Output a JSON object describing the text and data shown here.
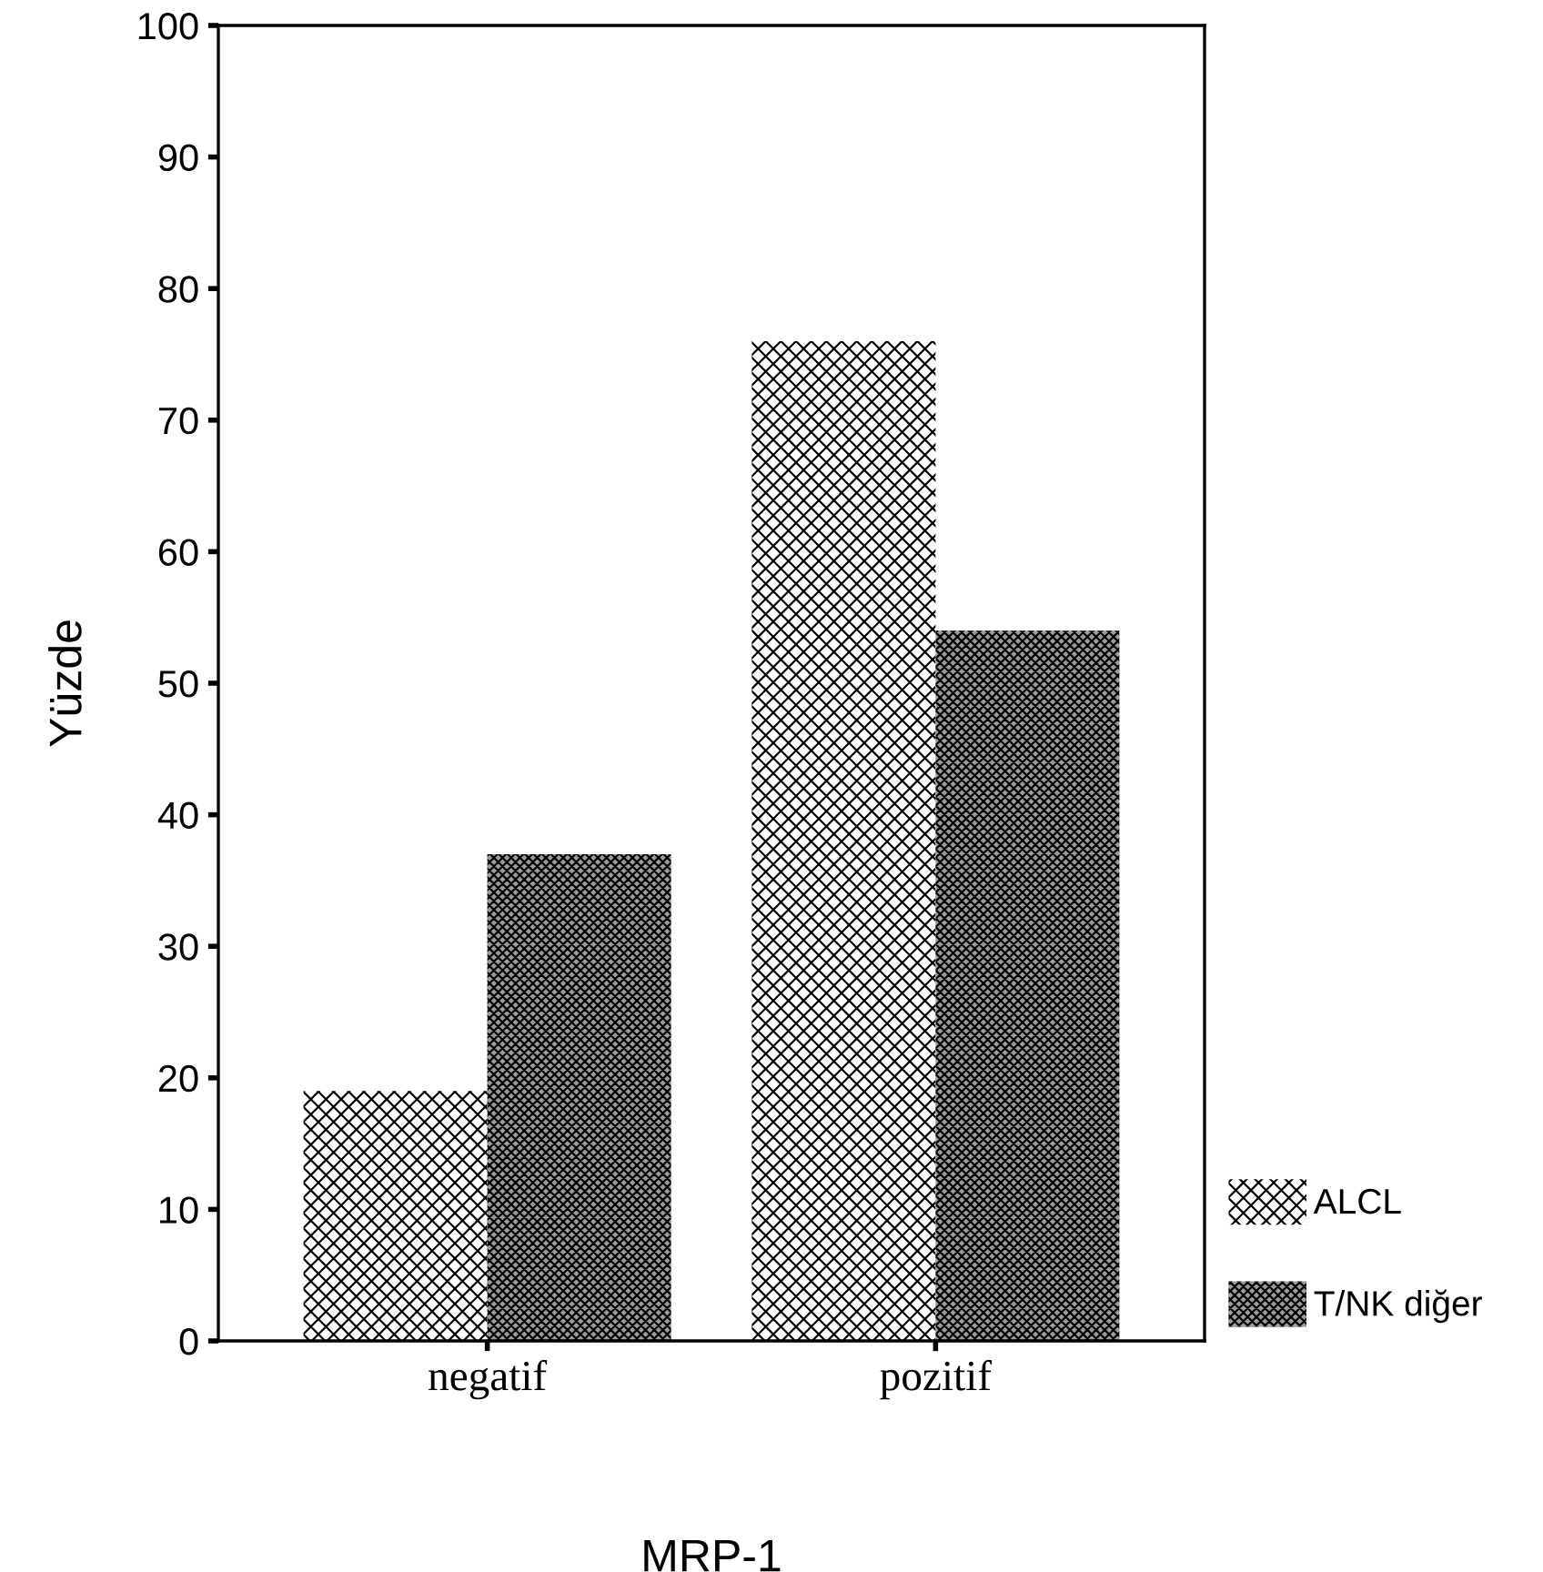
{
  "chart_data": {
    "type": "bar",
    "xlabel": "MRP-1",
    "ylabel": "Yüzde",
    "categories": [
      "negatif",
      "pozitif"
    ],
    "series": [
      {
        "name": "ALCL",
        "color": "#ffffff",
        "values": [
          19,
          76
        ]
      },
      {
        "name": "T/NK diğer",
        "color": "#9a9a9a",
        "values": [
          37,
          54
        ]
      }
    ],
    "ylim": [
      0,
      100
    ],
    "yticks": [
      0,
      10,
      20,
      30,
      40,
      50,
      60,
      70,
      80,
      90,
      100
    ],
    "grid": false,
    "legend": "bottom right"
  }
}
